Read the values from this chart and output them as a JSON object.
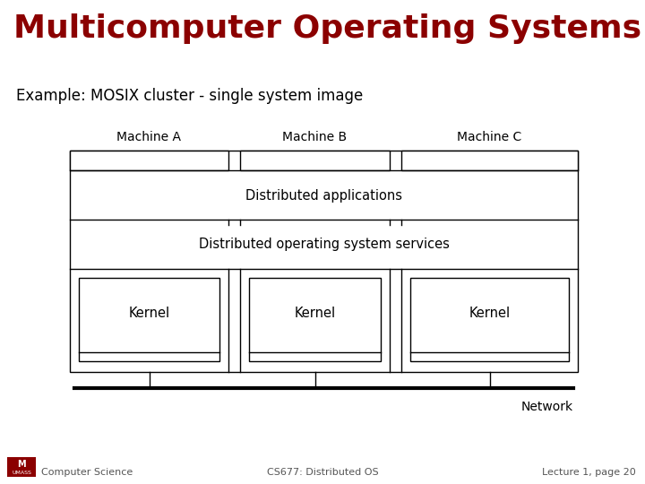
{
  "title": "Multicomputer Operating Systems",
  "title_color": "#8B0000",
  "subtitle": "Example: MOSIX cluster - single system image",
  "subtitle_color": "#000000",
  "footer_left": "Computer Science",
  "footer_center": "CS677: Distributed OS",
  "footer_right": "Lecture 1, page 20",
  "footer_color": "#8B0000",
  "bg_color": "#ffffff",
  "diagram": {
    "machines": [
      "Machine A",
      "Machine B",
      "Machine C"
    ],
    "dist_apps_label": "Distributed applications",
    "dist_os_label": "Distributed operating system services",
    "kernel_label": "Kernel",
    "network_label": "Network"
  }
}
